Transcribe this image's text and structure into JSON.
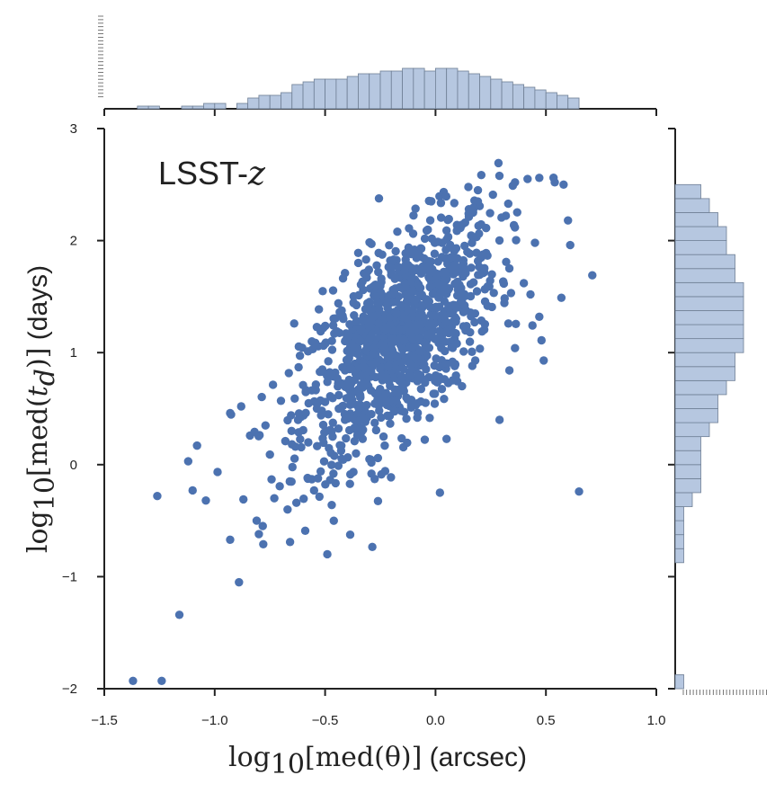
{
  "chart_data": {
    "type": "scatter",
    "subtype": "joint-plot-with-marginal-histograms",
    "annotation": {
      "prefix": "LSST-",
      "math": "z"
    },
    "xlabel": {
      "math_lead": "log",
      "math_sub": "10",
      "math_rest": "[med(θ)]",
      "unit": " (arcsec)"
    },
    "ylabel": {
      "math_lead": "log",
      "math_sub": "10",
      "math_rest_a": "[med(",
      "math_var": "t",
      "math_var_sub": "d",
      "math_rest_b": ")]",
      "unit": " (days)"
    },
    "xlim": [
      -1.5,
      1.0
    ],
    "ylim": [
      -2,
      3
    ],
    "xticks": [
      -1.5,
      -1.0,
      -0.5,
      0.0,
      0.5,
      1.0
    ],
    "xtick_labels": [
      "−1.5",
      "−1.0",
      "−0.5",
      "0.0",
      "0.5",
      "1.0"
    ],
    "yticks": [
      -2,
      -1,
      0,
      1,
      2,
      3
    ],
    "ytick_labels": [
      "−2",
      "−1",
      "0",
      "1",
      "2",
      "3"
    ],
    "marker_color": "#4C72B0",
    "hist_fill": "#B6C7E0",
    "hist_edge": "#6F7F95",
    "points": [
      [
        -1.37,
        -1.93
      ],
      [
        -1.24,
        -1.93
      ],
      [
        -1.16,
        -1.34
      ],
      [
        -0.89,
        -1.05
      ],
      [
        -1.26,
        -0.28
      ],
      [
        -0.93,
        -0.67
      ],
      [
        -0.78,
        -0.71
      ],
      [
        -0.49,
        -0.8
      ],
      [
        -1.12,
        0.03
      ],
      [
        -1.1,
        -0.23
      ],
      [
        -1.04,
        -0.32
      ],
      [
        -1.08,
        0.17
      ],
      [
        -0.93,
        0.46
      ],
      [
        -0.88,
        0.52
      ],
      [
        -0.87,
        -0.31
      ],
      [
        -0.81,
        -0.5
      ],
      [
        -0.8,
        -0.62
      ],
      [
        -0.73,
        -0.3
      ],
      [
        -0.67,
        -0.4
      ],
      [
        -0.63,
        -0.34
      ],
      [
        -0.59,
        -0.59
      ],
      [
        -0.55,
        -0.23
      ],
      [
        -0.52,
        -0.06
      ],
      [
        -0.47,
        -0.36
      ],
      [
        0.02,
        -0.25
      ],
      [
        0.65,
        -0.24
      ],
      [
        0.71,
        1.69
      ],
      [
        0.58,
        2.5
      ],
      [
        0.6,
        2.18
      ],
      [
        0.61,
        1.96
      ],
      [
        0.47,
        2.56
      ],
      [
        0.54,
        2.52
      ],
      [
        0.36,
        2.52
      ],
      [
        0.35,
        2.49
      ],
      [
        0.26,
        2.41
      ],
      [
        0.17,
        2.25
      ],
      [
        0.57,
        1.49
      ],
      [
        0.47,
        1.32
      ],
      [
        0.48,
        1.11
      ],
      [
        0.49,
        0.93
      ],
      [
        0.36,
        1.04
      ],
      [
        0.29,
        0.4
      ],
      [
        0.12,
        0.7
      ],
      [
        0.05,
        0.23
      ],
      [
        -0.11,
        0.51
      ],
      [
        -0.23,
        0.17
      ],
      [
        -0.29,
        -0.08
      ],
      [
        -0.36,
        0.1
      ],
      [
        -0.7,
        0.57
      ],
      [
        -0.62,
        0.87
      ],
      [
        -0.6,
        0.71
      ],
      [
        -0.64,
        1.26
      ],
      [
        -0.56,
        1.1
      ],
      [
        -0.52,
        1.19
      ],
      [
        -0.44,
        1.44
      ],
      [
        -0.41,
        1.71
      ],
      [
        -0.35,
        1.89
      ],
      [
        -0.29,
        1.97
      ],
      [
        -0.2,
        1.75
      ],
      [
        -0.12,
        2.11
      ],
      [
        -0.04,
        2.09
      ],
      [
        0.05,
        2.09
      ],
      [
        0.1,
        2.12
      ],
      [
        0.15,
        2.24
      ],
      [
        0.32,
        1.81
      ],
      [
        0.4,
        1.62
      ],
      [
        0.43,
        1.52
      ],
      [
        0.33,
        1.26
      ],
      [
        0.18,
        0.93
      ],
      [
        -0.03,
        0.78
      ],
      [
        -0.41,
        0.4
      ],
      [
        -0.5,
        0.56
      ],
      [
        -0.68,
        0.21
      ],
      [
        -0.77,
        0.35
      ],
      [
        -0.84,
        0.26
      ],
      [
        -0.75,
        0.09
      ],
      [
        -0.66,
        -0.15
      ],
      [
        -0.56,
        -0.13
      ],
      [
        -0.44,
        -0.01
      ],
      [
        -0.33,
        0.23
      ]
    ],
    "x_hist": {
      "bin_edges": [
        -1.35,
        -1.3,
        -1.25,
        -1.2,
        -1.15,
        -1.1,
        -1.05,
        -1.0,
        -0.95,
        -0.9,
        -0.85,
        -0.8,
        -0.75,
        -0.7,
        -0.65,
        -0.6,
        -0.55,
        -0.5,
        -0.45,
        -0.4,
        -0.35,
        -0.3,
        -0.25,
        -0.2,
        -0.15,
        -0.1,
        -0.05,
        0.0,
        0.05,
        0.1,
        0.15,
        0.2,
        0.25,
        0.3,
        0.35,
        0.4,
        0.45,
        0.5,
        0.55,
        0.6,
        0.65
      ],
      "heights": [
        1,
        1,
        0,
        0,
        1,
        1,
        2,
        2,
        0,
        2,
        4,
        5,
        5,
        6,
        9,
        10,
        11,
        11,
        11,
        12,
        13,
        13,
        14,
        14,
        15,
        15,
        14,
        15,
        15,
        14,
        13,
        12,
        11,
        10,
        9,
        8,
        7,
        6,
        5,
        4
      ]
    },
    "y_hist": {
      "bin_edges": [
        -2.0,
        -1.875,
        -1.75,
        -1.625,
        -1.5,
        -1.375,
        -1.25,
        -1.125,
        -1.0,
        -0.875,
        -0.75,
        -0.625,
        -0.5,
        -0.375,
        -0.25,
        -0.125,
        0.0,
        0.125,
        0.25,
        0.375,
        0.5,
        0.625,
        0.75,
        0.875,
        1.0,
        1.125,
        1.25,
        1.375,
        1.5,
        1.625,
        1.75,
        1.875,
        2.0,
        2.125,
        2.25,
        2.375,
        2.5
      ],
      "heights": [
        1,
        0,
        0,
        0,
        0,
        0,
        0,
        0,
        0,
        1,
        1,
        1,
        1,
        2,
        3,
        3,
        3,
        3,
        4,
        5,
        5,
        6,
        7,
        7,
        8,
        8,
        8,
        8,
        8,
        7,
        7,
        6,
        6,
        5,
        4,
        3
      ]
    }
  }
}
